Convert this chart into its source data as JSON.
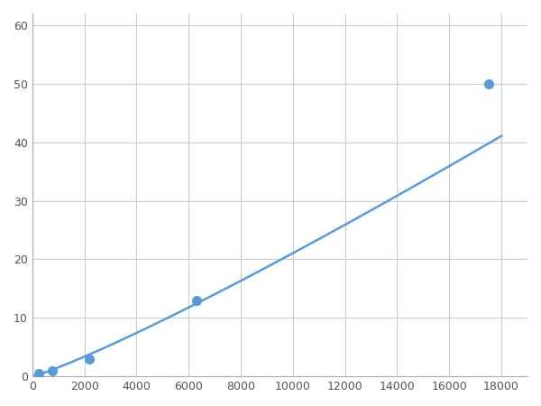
{
  "x_points": [
    250,
    750,
    1000,
    2200,
    6200,
    6500,
    17500
  ],
  "y_points": [
    0.5,
    1.0,
    1.0,
    3.0,
    13.0,
    13.0,
    50.0
  ],
  "marker_points_x": [
    250,
    750,
    2200,
    6300,
    17500
  ],
  "marker_points_y": [
    0.5,
    1.0,
    3.0,
    13.0,
    50.0
  ],
  "line_color": "#5b9bd5",
  "marker_color": "#5b9bd5",
  "marker_size": 7,
  "linewidth": 1.8,
  "xlim": [
    0,
    19000
  ],
  "ylim": [
    0,
    62
  ],
  "xticks": [
    0,
    2000,
    4000,
    6000,
    8000,
    10000,
    12000,
    14000,
    16000,
    18000
  ],
  "yticks": [
    0,
    10,
    20,
    30,
    40,
    50,
    60
  ],
  "grid_color": "#cccccc",
  "background_color": "#ffffff",
  "figsize": [
    6.0,
    4.5
  ],
  "dpi": 100
}
